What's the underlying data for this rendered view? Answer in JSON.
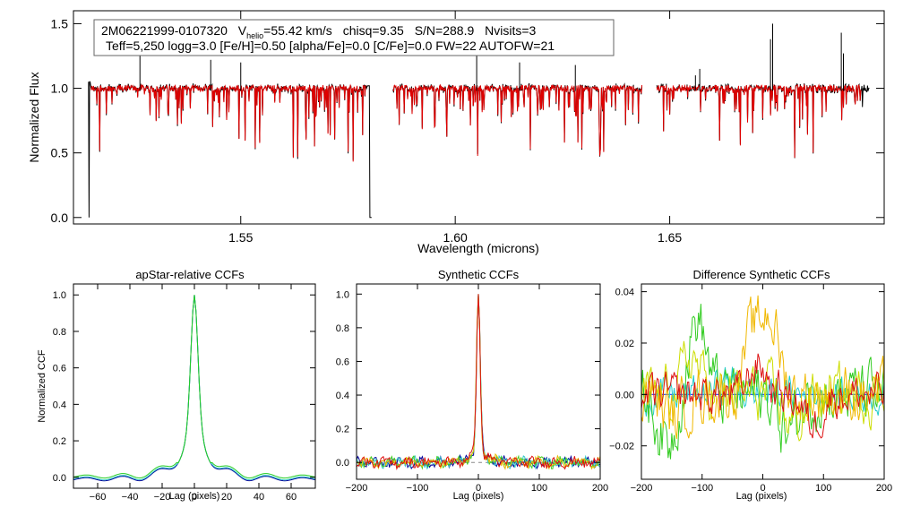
{
  "chart_data": [
    {
      "type": "line",
      "title": "",
      "annotation": {
        "line1": {
          "star_id": "2M06221999-0107320",
          "v_symbol": "V",
          "v_subscript": "helio",
          "v_value": "=55.42 km/s",
          "chisq": "chisq=9.35",
          "snr": "S/N=288.9",
          "nvisits": "Nvisits=3"
        },
        "line2": "Teff=5,250 logg=3.0 [Fe/H]=0.50 [alpha/Fe]=0.0 [C/Fe]=0.0 FW=22 AUTOFW=21"
      },
      "xlabel": "Wavelength (microns)",
      "ylabel": "Normalized Flux",
      "xlim": [
        1.511,
        1.7
      ],
      "ylim": [
        -0.05,
        1.6
      ],
      "xticks": [
        1.55,
        1.6,
        1.65
      ],
      "xtick_labels": [
        "1.55",
        "1.60",
        "1.65"
      ],
      "yticks": [
        0.0,
        0.5,
        1.0,
        1.5
      ],
      "ytick_labels": [
        "0.0",
        "0.5",
        "1.0",
        "1.5"
      ],
      "chips": [
        [
          1.5145,
          1.5805
        ],
        [
          1.5855,
          1.6435
        ],
        [
          1.647,
          1.6965
        ]
      ],
      "series": [
        {
          "name": "observed spectrum",
          "color": "#000000"
        },
        {
          "name": "best-fit synthetic",
          "color": "#e00000"
        }
      ]
    },
    {
      "type": "line",
      "title": "apStar-relative CCFs",
      "xlabel": "Lag (pixels)",
      "ylabel": "Normalized CCF",
      "xlim": [
        -75,
        75
      ],
      "ylim": [
        -0.06,
        1.06
      ],
      "xticks": [
        -60,
        -40,
        -20,
        0,
        20,
        40,
        60
      ],
      "xtick_labels": [
        "−60",
        "−40",
        "−20",
        "0",
        "20",
        "40",
        "60"
      ],
      "yticks": [
        0.0,
        0.2,
        0.4,
        0.6,
        0.8,
        1.0
      ],
      "ytick_labels": [
        "0.0",
        "0.2",
        "0.4",
        "0.6",
        "0.8",
        "1.0"
      ],
      "series": [
        {
          "name": "visit 1",
          "color": "#00009a"
        },
        {
          "name": "visit 2",
          "color": "#33c8c8"
        },
        {
          "name": "visit 3",
          "color": "#22cc22"
        }
      ]
    },
    {
      "type": "line",
      "title": "Synthetic CCFs",
      "xlabel": "Lag (pixels)",
      "ylabel": "",
      "xlim": [
        -200,
        200
      ],
      "ylim": [
        -0.1,
        1.06
      ],
      "xticks": [
        -200,
        -100,
        0,
        100,
        200
      ],
      "xtick_labels": [
        "−200",
        "−100",
        "0",
        "100",
        "200"
      ],
      "yticks": [
        0.0,
        0.2,
        0.4,
        0.6,
        0.8,
        1.0
      ],
      "ytick_labels": [
        "0.0",
        "0.2",
        "0.4",
        "0.6",
        "0.8",
        "1.0"
      ],
      "series": [
        {
          "name": "visit 1",
          "color": "#00009a"
        },
        {
          "name": "visit 2",
          "color": "#33c8c8"
        },
        {
          "name": "visit 3",
          "color": "#44cc22"
        },
        {
          "name": "visit 4",
          "color": "#e8b800"
        },
        {
          "name": "visit 5",
          "color": "#dd1111"
        }
      ]
    },
    {
      "type": "line",
      "title": "Difference Synthetic CCFs",
      "xlabel": "Lag (pixels)",
      "ylabel": "",
      "xlim": [
        -200,
        200
      ],
      "ylim": [
        -0.033,
        0.043
      ],
      "xticks": [
        -200,
        -100,
        0,
        100,
        200
      ],
      "xtick_labels": [
        "−200",
        "−100",
        "0",
        "100",
        "200"
      ],
      "yticks": [
        -0.02,
        0.0,
        0.02,
        0.04
      ],
      "ytick_labels": [
        "−0.02",
        "0.00",
        "0.02",
        "0.04"
      ],
      "series": [
        {
          "name": "zero line",
          "color": "#3050ff"
        },
        {
          "name": "visit 1",
          "color": "#22cccc"
        },
        {
          "name": "visit 2",
          "color": "#33cc22"
        },
        {
          "name": "visit 3",
          "color": "#ccdd00"
        },
        {
          "name": "visit 4",
          "color": "#f0b800"
        },
        {
          "name": "visit 5",
          "color": "#dd1111"
        }
      ]
    }
  ]
}
